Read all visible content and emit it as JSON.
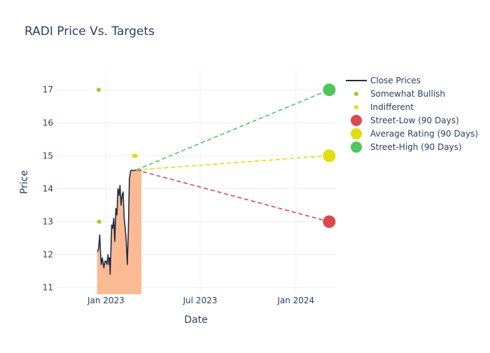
{
  "chart_data": {
    "type": "line",
    "title": "RADI Price Vs. Targets",
    "xlabel": "Date",
    "ylabel": "Price",
    "xlim": [
      "2022-09-27",
      "2024-03-18"
    ],
    "ylim": [
      10.8,
      17.6
    ],
    "x_ticks": [
      {
        "date": "2023-01-01",
        "label": "Jan 2023"
      },
      {
        "date": "2023-07-01",
        "label": "Jul 2023"
      },
      {
        "date": "2024-01-01",
        "label": "Jan 2024"
      }
    ],
    "y_ticks": [
      11,
      12,
      13,
      14,
      15,
      16,
      17
    ],
    "grid": true,
    "legend_position": "top-right",
    "colors": {
      "close": "#1f2d44",
      "fill": "#fbb994",
      "somewhat_bullish": "#9acd32",
      "indifferent": "#e2dc10",
      "street_low": "#d94a4f",
      "average": "#e2dc10",
      "street_high": "#4ec65a",
      "text": "#2a3f5f",
      "grid": "#eeeeee"
    },
    "series": [
      {
        "name": "Close Prices",
        "kind": "line",
        "x": [
          "2022-12-15",
          "2022-12-16",
          "2022-12-18",
          "2022-12-20",
          "2022-12-22",
          "2022-12-23",
          "2022-12-25",
          "2022-12-28",
          "2022-12-30",
          "2023-01-01",
          "2023-01-03",
          "2023-01-05",
          "2023-01-07",
          "2023-01-08",
          "2023-01-09",
          "2023-01-12",
          "2023-01-14",
          "2023-01-16",
          "2023-01-18",
          "2023-01-20",
          "2023-01-22",
          "2023-01-24",
          "2023-01-26",
          "2023-01-28",
          "2023-01-30",
          "2023-02-01",
          "2023-02-03",
          "2023-02-05",
          "2023-02-07",
          "2023-02-09",
          "2023-02-11",
          "2023-02-13",
          "2023-02-15",
          "2023-02-17",
          "2023-02-18",
          "2023-02-20",
          "2023-02-24",
          "2023-02-28",
          "2023-03-02",
          "2023-03-04",
          "2023-03-06",
          "2023-03-08",
          "2023-03-10"
        ],
        "y": [
          12.1,
          12.1,
          12.2,
          12.6,
          11.9,
          11.7,
          11.9,
          11.6,
          11.8,
          11.8,
          11.7,
          12.0,
          11.7,
          11.9,
          11.4,
          12.9,
          12.8,
          13.1,
          12.4,
          13.4,
          13.2,
          14.0,
          13.8,
          14.1,
          13.5,
          13.8,
          13.9,
          13.1,
          12.8,
          12.4,
          11.7,
          12.7,
          14.3,
          14.5,
          14.55,
          14.56,
          14.55,
          14.57,
          14.58,
          14.57,
          14.55,
          14.57,
          14.56
        ]
      },
      {
        "name": "Somewhat Bullish",
        "kind": "markers",
        "x": [
          "2022-12-18",
          "2022-12-19"
        ],
        "y": [
          17,
          13
        ]
      },
      {
        "name": "Indifferent",
        "kind": "markers",
        "x": [
          "2023-02-24",
          "2023-02-27"
        ],
        "y": [
          15,
          15
        ]
      },
      {
        "name": "Street-Low (90 Days)",
        "kind": "target",
        "x": [
          "2023-02-28",
          "2024-03-05"
        ],
        "y": [
          14.57,
          13
        ]
      },
      {
        "name": "Average Rating (90 Days)",
        "kind": "target",
        "x": [
          "2023-02-28",
          "2024-03-05"
        ],
        "y": [
          14.57,
          15
        ]
      },
      {
        "name": "Street-High (90 Days)",
        "kind": "target",
        "x": [
          "2023-02-28",
          "2024-03-05"
        ],
        "y": [
          14.57,
          17
        ]
      }
    ]
  }
}
